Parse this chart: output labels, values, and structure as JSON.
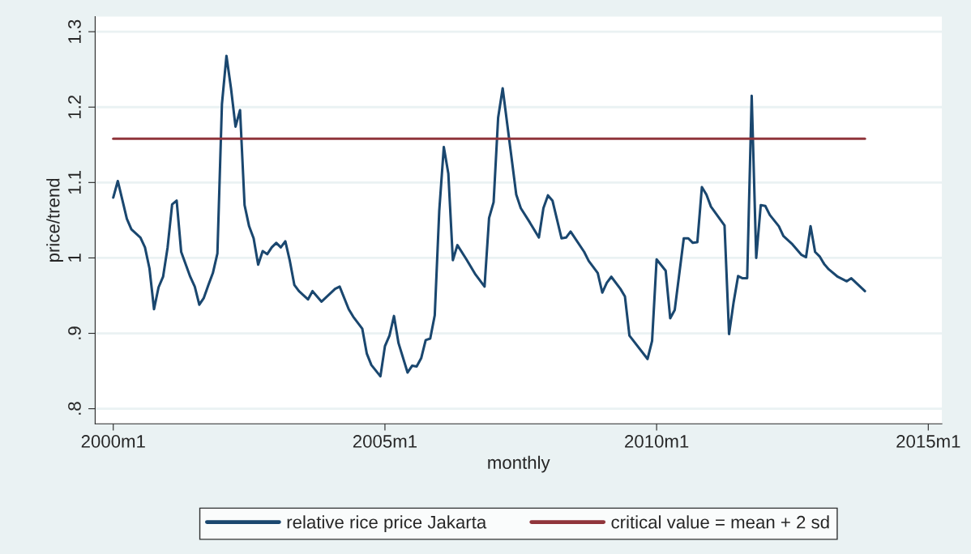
{
  "chart_data": {
    "type": "line",
    "xlabel": "monthly",
    "ylabel": "price/trend",
    "xlim": [
      "1999-09",
      "2015-04"
    ],
    "xticks": [
      {
        "value": "2000-01",
        "label": "2000m1"
      },
      {
        "value": "2005-01",
        "label": "2005m1"
      },
      {
        "value": "2010-01",
        "label": "2010m1"
      },
      {
        "value": "2015-01",
        "label": "2015m1"
      }
    ],
    "ylim": [
      0.78,
      1.32
    ],
    "yticks": [
      {
        "value": 0.8,
        "label": ".8"
      },
      {
        "value": 0.9,
        "label": ".9"
      },
      1,
      1.1,
      1.2,
      1.3
    ],
    "grid": "y",
    "legend": "bottom",
    "line_style": "solid",
    "series": [
      {
        "name": "relative rice price Jakarta",
        "color": "#1a476f",
        "x": [
          "2000-01",
          "2000-02",
          "2000-04",
          "2000-05",
          "2000-07",
          "2000-08",
          "2000-09",
          "2000-10",
          "2000-11",
          "2000-12",
          "2001-01",
          "2001-02",
          "2001-03",
          "2001-04",
          "2001-06",
          "2001-07",
          "2001-08",
          "2001-09",
          "2001-10",
          "2001-11",
          "2001-12",
          "2002-01",
          "2002-02",
          "2002-03",
          "2002-04",
          "2002-05",
          "2002-06",
          "2002-07",
          "2002-08",
          "2002-09",
          "2002-10",
          "2002-11",
          "2002-12",
          "2003-01",
          "2003-02",
          "2003-03",
          "2003-04",
          "2003-05",
          "2003-06",
          "2003-08",
          "2003-09",
          "2003-11",
          "2004-02",
          "2004-03",
          "2004-05",
          "2004-06",
          "2004-08",
          "2004-09",
          "2004-10",
          "2004-12",
          "2005-01",
          "2005-02",
          "2005-03",
          "2005-04",
          "2005-06",
          "2005-07",
          "2005-08",
          "2005-09",
          "2005-10",
          "2005-11",
          "2005-12",
          "2006-01",
          "2006-02",
          "2006-03",
          "2006-04",
          "2006-05",
          "2006-07",
          "2006-09",
          "2006-11",
          "2006-12",
          "2007-01",
          "2007-02",
          "2007-03",
          "2007-06",
          "2007-07",
          "2007-09",
          "2007-11",
          "2007-12",
          "2008-01",
          "2008-02",
          "2008-04",
          "2008-05",
          "2008-06",
          "2008-09",
          "2008-10",
          "2008-12",
          "2009-01",
          "2009-02",
          "2009-03",
          "2009-05",
          "2009-06",
          "2009-07",
          "2009-11",
          "2009-12",
          "2010-01",
          "2010-03",
          "2010-04",
          "2010-05",
          "2010-07",
          "2010-08",
          "2010-09",
          "2010-10",
          "2010-11",
          "2010-12",
          "2011-01",
          "2011-04",
          "2011-05",
          "2011-06",
          "2011-07",
          "2011-08",
          "2011-09",
          "2011-10",
          "2011-11",
          "2011-12",
          "2012-01",
          "2012-02",
          "2012-04",
          "2012-05",
          "2012-07",
          "2012-09",
          "2012-10",
          "2012-11",
          "2012-12",
          "2013-01",
          "2013-02",
          "2013-03",
          "2013-05",
          "2013-07",
          "2013-08",
          "2013-11"
        ],
        "values": [
          1.08,
          1.102,
          1.052,
          1.038,
          1.027,
          1.014,
          0.986,
          0.932,
          0.961,
          0.975,
          1.014,
          1.071,
          1.076,
          1.008,
          0.975,
          0.962,
          0.938,
          0.947,
          0.964,
          0.98,
          1.006,
          1.204,
          1.268,
          1.225,
          1.174,
          1.196,
          1.07,
          1.042,
          1.026,
          0.991,
          1.009,
          1.005,
          1.014,
          1.02,
          1.014,
          1.022,
          0.996,
          0.964,
          0.956,
          0.945,
          0.956,
          0.942,
          0.959,
          0.962,
          0.932,
          0.922,
          0.906,
          0.873,
          0.858,
          0.843,
          0.883,
          0.897,
          0.923,
          0.887,
          0.848,
          0.857,
          0.856,
          0.867,
          0.891,
          0.893,
          0.924,
          1.063,
          1.147,
          1.112,
          0.997,
          1.017,
          0.998,
          0.978,
          0.962,
          1.053,
          1.074,
          1.186,
          1.225,
          1.084,
          1.066,
          1.047,
          1.027,
          1.066,
          1.083,
          1.076,
          1.026,
          1.027,
          1.035,
          1.008,
          0.996,
          0.98,
          0.954,
          0.967,
          0.975,
          0.959,
          0.949,
          0.897,
          0.866,
          0.89,
          0.998,
          0.983,
          0.92,
          0.931,
          1.026,
          1.026,
          1.02,
          1.021,
          1.094,
          1.084,
          1.068,
          1.043,
          0.899,
          0.941,
          0.976,
          0.973,
          0.973,
          1.215,
          1.0,
          1.07,
          1.069,
          1.057,
          1.042,
          1.029,
          1.018,
          1.004,
          1.001,
          1.042,
          1.008,
          1.002,
          0.992,
          0.985,
          0.975,
          0.969,
          0.973,
          0.956
        ]
      },
      {
        "name": "critical value = mean + 2 sd",
        "color": "#90353b",
        "x": [
          "2000-01",
          "2013-11"
        ],
        "values": [
          1.158,
          1.158
        ]
      }
    ]
  }
}
